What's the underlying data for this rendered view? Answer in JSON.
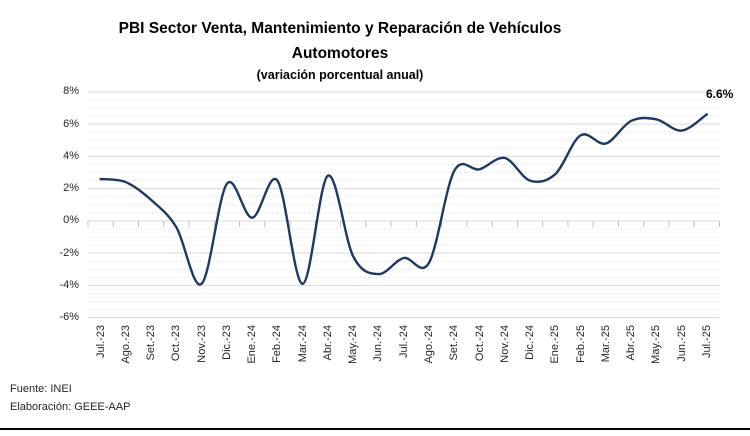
{
  "header": {
    "title_line1": "PBI Sector Venta, Mantenimiento y Reparación de Vehículos",
    "title_line2": "Automotores",
    "subtitle": "(variación porcentual anual)"
  },
  "footer": {
    "source": "Fuente: INEI",
    "elaboration": "Elaboración: GEEE-AAP"
  },
  "chart_data": {
    "type": "line",
    "title": "PBI Sector Venta, Mantenimiento y Reparación de Vehículos Automotores",
    "subtitle": "(variación porcentual anual)",
    "categories": [
      "Jul.-23",
      "Ago.-23",
      "Set.-23",
      "Oct.-23",
      "Nov.-23",
      "Dic.-23",
      "Ene.-24",
      "Feb.-24",
      "Mar.-24",
      "Abr.-24",
      "May.-24",
      "Jun.-24",
      "Jul.-24",
      "Ago.-24",
      "Set.-24",
      "Oct.-24",
      "Nov.-24",
      "Dic.-24",
      "Ene.-25",
      "Feb.-25",
      "Mar.-25",
      "Abr.-25",
      "May.-25",
      "Jun.-25",
      "Jul.-25"
    ],
    "values": [
      2.6,
      2.4,
      1.3,
      -0.4,
      -3.9,
      2.3,
      0.2,
      2.5,
      -3.9,
      2.8,
      -2.2,
      -3.3,
      -2.3,
      -2.6,
      3.1,
      3.2,
      3.9,
      2.5,
      2.9,
      5.3,
      4.8,
      6.2,
      6.3,
      5.6,
      6.6
    ],
    "xlabel": "",
    "ylabel": "",
    "ylim": [
      -6,
      8
    ],
    "ytick_step_major": 2,
    "ytick_step_minor": 0.5,
    "ytick_labels": [
      "8%",
      "6%",
      "4%",
      "2%",
      "0%",
      "-2%",
      "-4%",
      "-6%"
    ],
    "yticks": [
      8,
      6,
      4,
      2,
      0,
      -2,
      -4,
      -6
    ],
    "grid": "major solid, minor dashed",
    "legend": "none",
    "smoothed_line": true,
    "end_label": "6.6%",
    "colors": {
      "line": "#1f3864",
      "grid_major": "#d9d9d9",
      "grid_minor": "#e7e7e7",
      "axis_tick": "#bfbfbf",
      "label_text": "#262626",
      "title_text": "#000000"
    }
  }
}
